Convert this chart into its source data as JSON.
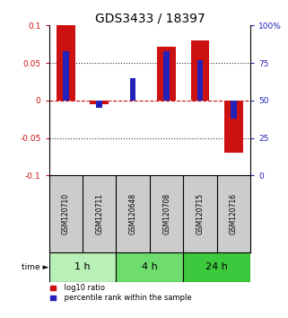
{
  "title": "GDS3433 / 18397",
  "samples": [
    "GSM120710",
    "GSM120711",
    "GSM120648",
    "GSM120708",
    "GSM120715",
    "GSM120716"
  ],
  "log10_ratio": [
    0.1,
    -0.005,
    0.0,
    0.072,
    0.08,
    -0.07
  ],
  "percentile_rank": [
    83,
    45,
    65,
    83,
    77,
    38
  ],
  "time_groups": [
    {
      "label": "1 h",
      "start": 0,
      "end": 2,
      "color": "#b8f0b8"
    },
    {
      "label": "4 h",
      "start": 2,
      "end": 4,
      "color": "#6edd6e"
    },
    {
      "label": "24 h",
      "start": 4,
      "end": 6,
      "color": "#3dc93d"
    }
  ],
  "bar_color_red": "#cc1111",
  "bar_color_blue": "#2222bb",
  "bar_width": 0.55,
  "ylim": [
    -0.1,
    0.1
  ],
  "yticks_left": [
    -0.1,
    -0.05,
    0,
    0.05,
    0.1
  ],
  "yticks_right": [
    0,
    25,
    50,
    75,
    100
  ],
  "background_color": "#ffffff",
  "plot_bg": "#ffffff",
  "dotted_line_color": "#333333",
  "zero_line_color": "#cc1111",
  "title_fontsize": 10,
  "tick_fontsize": 6.5,
  "sample_label_fontsize": 5.5,
  "time_fontsize": 8,
  "legend_fontsize": 6
}
